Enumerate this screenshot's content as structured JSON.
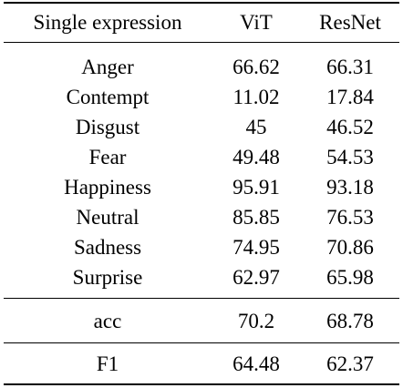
{
  "table": {
    "header": [
      "Single expression",
      "ViT",
      "ResNet"
    ],
    "rows": [
      [
        "Anger",
        "66.62",
        "66.31"
      ],
      [
        "Contempt",
        "11.02",
        "17.84"
      ],
      [
        "Disgust",
        "45",
        "46.52"
      ],
      [
        "Fear",
        "49.48",
        "54.53"
      ],
      [
        "Happiness",
        "95.91",
        "93.18"
      ],
      [
        "Neutral",
        "85.85",
        "76.53"
      ],
      [
        "Sadness",
        "74.95",
        "70.86"
      ],
      [
        "Surprise",
        "62.97",
        "65.98"
      ]
    ],
    "summary": [
      [
        "acc",
        "70.2",
        "68.78"
      ],
      [
        "F1",
        "64.48",
        "62.37"
      ]
    ]
  }
}
